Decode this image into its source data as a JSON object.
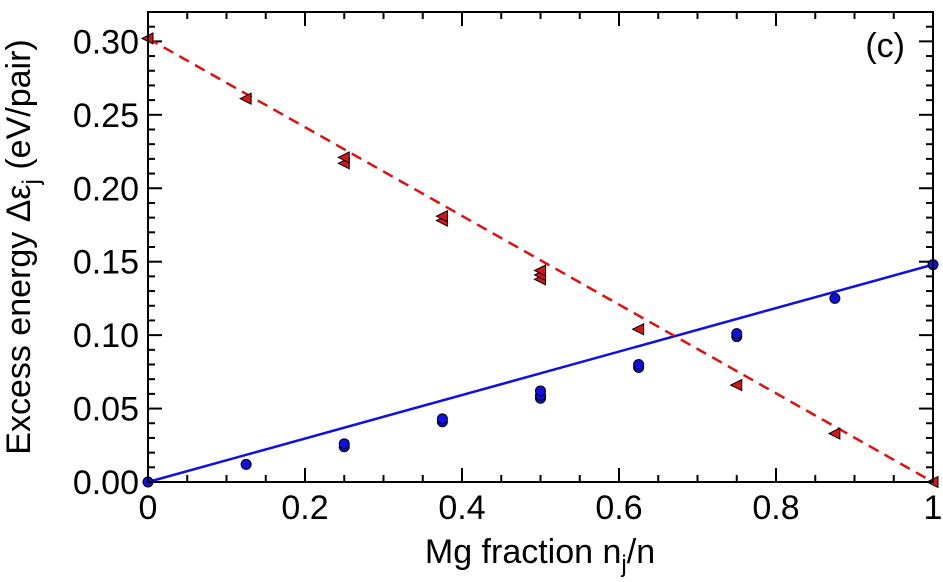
{
  "chart_data": {
    "type": "scatter",
    "panel_label": "(c)",
    "xlabel": {
      "main": "Mg fraction n",
      "sub": "j",
      "tail": "/n"
    },
    "ylabel": {
      "main": "Excess energy Δε",
      "sub": "j",
      "tail": " (eV/pair)"
    },
    "xlim": [
      0,
      1
    ],
    "ylim": [
      0,
      0.32
    ],
    "x_ticks": [
      {
        "value": 0,
        "label": "0"
      },
      {
        "value": 0.2,
        "label": "0.2"
      },
      {
        "value": 0.4,
        "label": "0.4"
      },
      {
        "value": 0.6,
        "label": "0.6"
      },
      {
        "value": 0.8,
        "label": "0.8"
      },
      {
        "value": 1,
        "label": "1"
      }
    ],
    "x_minor_step": 0.05,
    "y_ticks": [
      {
        "value": 0.0,
        "label": "0.00"
      },
      {
        "value": 0.05,
        "label": "0.05"
      },
      {
        "value": 0.1,
        "label": "0.10"
      },
      {
        "value": 0.15,
        "label": "0.15"
      },
      {
        "value": 0.2,
        "label": "0.20"
      },
      {
        "value": 0.25,
        "label": "0.25"
      },
      {
        "value": 0.3,
        "label": "0.30"
      }
    ],
    "y_minor_step": 0.01,
    "series": [
      {
        "name": "blue-circles",
        "marker": "circle",
        "color": "#1010e0",
        "line": {
          "style": "solid",
          "color": "#1010e0",
          "from": [
            0,
            0
          ],
          "to": [
            1,
            0.148
          ]
        },
        "points": [
          [
            0,
            0.0
          ],
          [
            0.125,
            0.012
          ],
          [
            0.25,
            0.024
          ],
          [
            0.25,
            0.026
          ],
          [
            0.375,
            0.041
          ],
          [
            0.375,
            0.043
          ],
          [
            0.5,
            0.057
          ],
          [
            0.5,
            0.059
          ],
          [
            0.5,
            0.062
          ],
          [
            0.625,
            0.078
          ],
          [
            0.625,
            0.08
          ],
          [
            0.75,
            0.099
          ],
          [
            0.75,
            0.101
          ],
          [
            0.875,
            0.125
          ],
          [
            1,
            0.148
          ]
        ]
      },
      {
        "name": "red-triangles",
        "marker": "triangle-left",
        "color": "#d01818",
        "line": {
          "style": "dashed",
          "color": "#e01010",
          "from": [
            0,
            0.302
          ],
          "to": [
            1,
            0.0
          ]
        },
        "points": [
          [
            0,
            0.302
          ],
          [
            0.125,
            0.261
          ],
          [
            0.25,
            0.217
          ],
          [
            0.25,
            0.221
          ],
          [
            0.375,
            0.178
          ],
          [
            0.375,
            0.181
          ],
          [
            0.5,
            0.138
          ],
          [
            0.5,
            0.141
          ],
          [
            0.5,
            0.144
          ],
          [
            0.625,
            0.104
          ],
          [
            0.75,
            0.066
          ],
          [
            0.875,
            0.033
          ],
          [
            1,
            0.0
          ]
        ]
      }
    ]
  }
}
